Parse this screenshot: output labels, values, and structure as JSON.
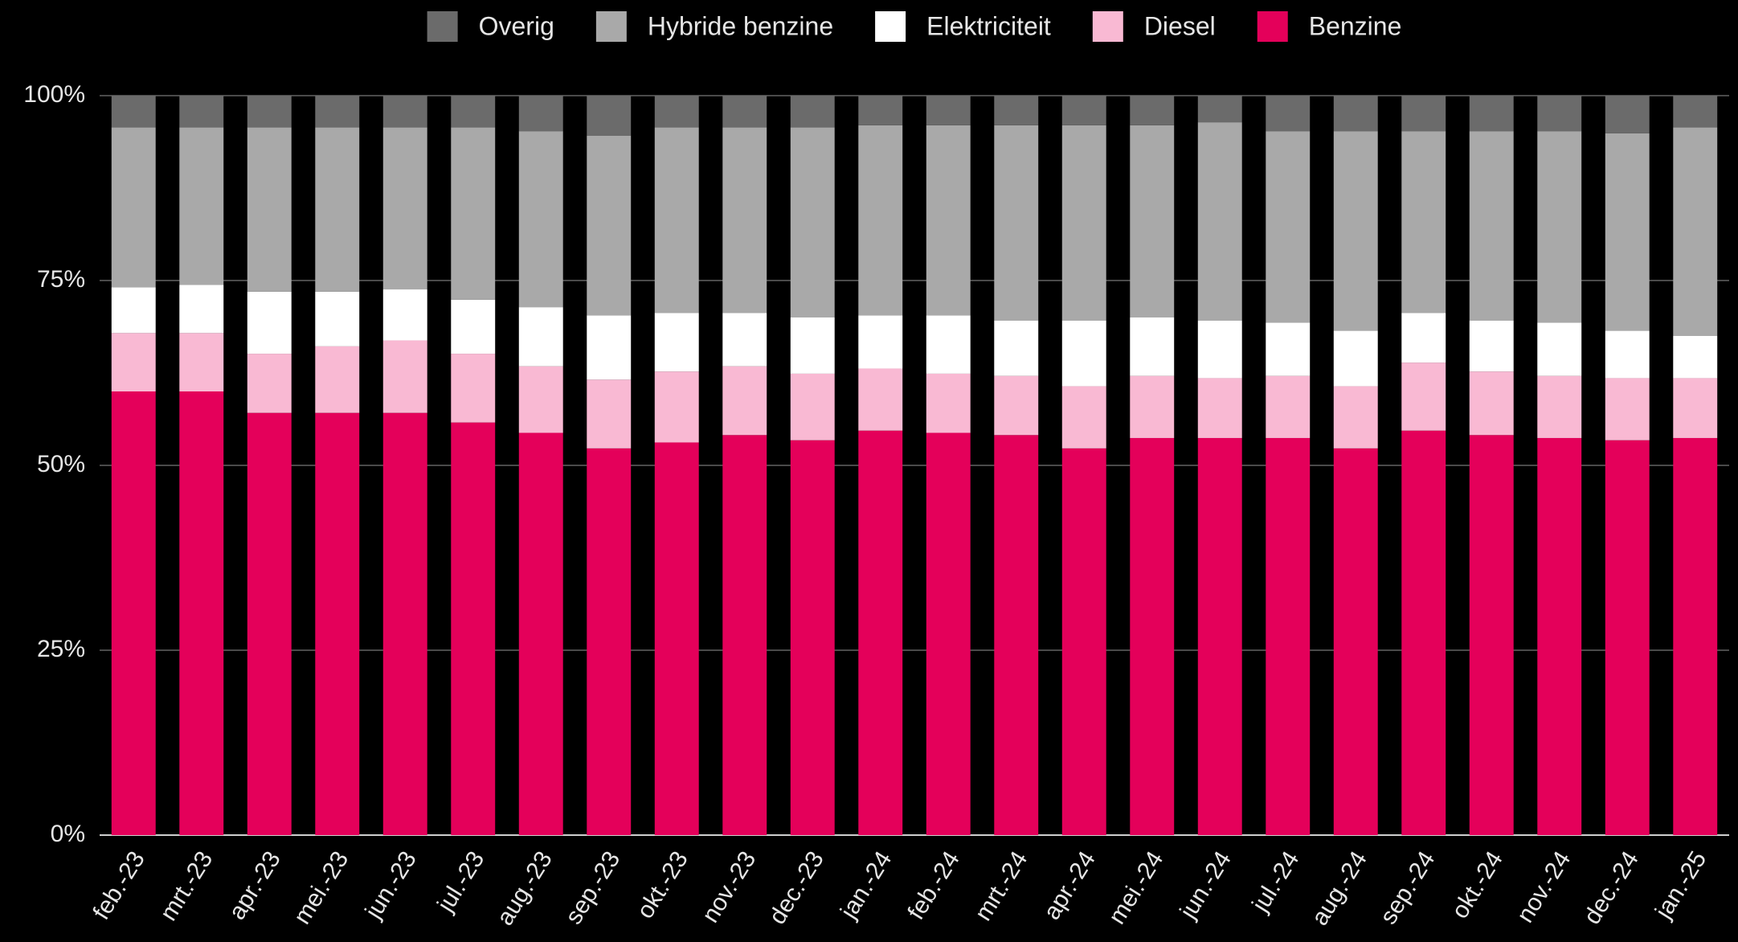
{
  "chart_data": {
    "type": "stacked_bar",
    "categories": [
      "feb.-23",
      "mrt.-23",
      "apr.-23",
      "mei.-23",
      "jun.-23",
      "jul.-23",
      "aug.-23",
      "sep.-23",
      "okt.-23",
      "nov.-23",
      "dec.-23",
      "jan.-24",
      "feb.-24",
      "mrt.-24",
      "apr.-24",
      "mei.-24",
      "jun.-24",
      "jul.-24",
      "aug.-24",
      "sep.-24",
      "okt.-24",
      "nov.-24",
      "dec.-24",
      "jan.-25"
    ],
    "series": [
      {
        "name": "Benzine",
        "color": "#e4005a",
        "values": [
          60.0,
          60.0,
          57.1,
          57.1,
          57.1,
          55.8,
          54.4,
          52.3,
          53.1,
          54.1,
          53.4,
          54.7,
          54.4,
          54.1,
          52.3,
          53.7,
          53.7,
          53.7,
          52.3,
          54.7,
          54.1,
          53.7,
          53.4,
          53.7
        ]
      },
      {
        "name": "Diesel",
        "color": "#f9b9d3",
        "values": [
          7.9,
          7.9,
          8.0,
          9.0,
          9.8,
          9.3,
          9.0,
          9.3,
          9.6,
          9.3,
          9.0,
          8.4,
          8.0,
          8.0,
          8.4,
          8.4,
          8.1,
          8.4,
          8.4,
          9.2,
          8.6,
          8.4,
          8.4,
          8.1
        ]
      },
      {
        "name": "Elektriciteit",
        "color": "#ffffff",
        "values": [
          6.2,
          6.5,
          8.4,
          7.4,
          6.9,
          7.3,
          8.0,
          8.7,
          7.9,
          7.2,
          7.6,
          7.2,
          7.9,
          7.5,
          8.9,
          7.9,
          7.8,
          7.2,
          7.5,
          6.7,
          6.9,
          7.2,
          6.4,
          5.7
        ]
      },
      {
        "name": "Hybride benzine",
        "color": "#a9a9a9",
        "values": [
          21.6,
          21.3,
          22.2,
          22.2,
          21.9,
          23.3,
          23.8,
          24.3,
          25.1,
          25.1,
          25.7,
          25.7,
          25.7,
          26.4,
          26.4,
          26.0,
          26.8,
          25.9,
          27.0,
          24.6,
          25.6,
          25.9,
          26.7,
          28.2
        ]
      },
      {
        "name": "Overig",
        "color": "#6b6b6b",
        "values": [
          4.3,
          4.3,
          4.3,
          4.3,
          4.3,
          4.3,
          4.8,
          5.4,
          4.3,
          4.3,
          4.3,
          4.0,
          4.0,
          4.0,
          4.0,
          4.0,
          3.6,
          4.8,
          4.8,
          4.8,
          4.8,
          4.8,
          5.1,
          4.3
        ]
      }
    ],
    "ylim": [
      0,
      100
    ],
    "yticks": [
      {
        "value": 0,
        "label": "0%"
      },
      {
        "value": 25,
        "label": "25%"
      },
      {
        "value": 50,
        "label": "50%"
      },
      {
        "value": 75,
        "label": "75%"
      },
      {
        "value": 100,
        "label": "100%"
      }
    ],
    "grid": true,
    "legend": "top"
  }
}
